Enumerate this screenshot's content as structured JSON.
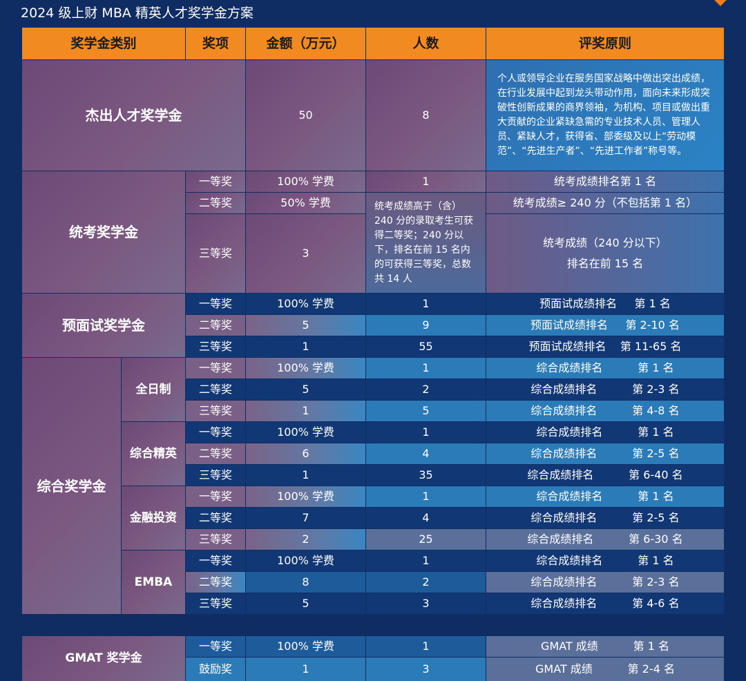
{
  "title": "2024 级上财 MBA 精英人才奖学金方案",
  "headers": [
    "奖学金类别",
    "奖项",
    "金额（万元）",
    "人数",
    "评奖原则"
  ],
  "outstanding": {
    "category": "杰出人才奖学金",
    "amount": "50",
    "count": "8",
    "criteria": "个人或领导企业在服务国家战略中做出突出成绩，在行业发展中起到龙头带动作用，面向未来形成突破性创新成果的商界领袖，为机构、项目或做出重大贡献的企业紧缺急需的专业技术人员、管理人员、紧缺人才，获得省、部委级及以上“劳动模范”、“先进生产者”、“先进工作者”称号等。"
  },
  "unified": {
    "category": "统考奖学金",
    "rows": [
      {
        "award": "一等奖",
        "amount": "100% 学费",
        "count": "1",
        "criteria": "统考成绩排名第 1 名"
      },
      {
        "award": "二等奖",
        "amount": "50% 学费",
        "criteria": "统考成绩≥ 240 分（不包括第 1 名）"
      },
      {
        "award": "三等奖",
        "amount": "3",
        "criteria": "统考成绩（240 分以下）\n排名在前 15 名"
      }
    ],
    "shared_count": "统考成绩高于（含）240 分的录取考生可获得二等奖；240 分以下，排名在前 15 名内的可获得三等奖，总数共 14 人"
  },
  "interview": {
    "category": "预面试奖学金",
    "rows": [
      {
        "award": "一等奖",
        "amount": "100% 学费",
        "count": "1",
        "criteria": "预面试成绩排名     第 1 名"
      },
      {
        "award": "二等奖",
        "amount": "5",
        "count": "9",
        "criteria": "预面试成绩排名     第 2-10 名"
      },
      {
        "award": "三等奖",
        "amount": "1",
        "count": "55",
        "criteria": "预面试成绩排名    第 11-65 名"
      }
    ]
  },
  "comprehensive": {
    "category": "综合奖学金",
    "groups": [
      {
        "name": "全日制",
        "rows": [
          {
            "award": "一等奖",
            "amount": "100% 学费",
            "count": "1",
            "criteria": "综合成绩排名          第 1 名"
          },
          {
            "award": "二等奖",
            "amount": "5",
            "count": "2",
            "criteria": "综合成绩排名          第 2-3 名"
          },
          {
            "award": "三等奖",
            "amount": "1",
            "count": "5",
            "criteria": "综合成绩排名          第 4-8 名"
          }
        ]
      },
      {
        "name": "综合精英",
        "rows": [
          {
            "award": "一等奖",
            "amount": "100% 学费",
            "count": "1",
            "criteria": "综合成绩排名          第 1 名"
          },
          {
            "award": "二等奖",
            "amount": "6",
            "count": "4",
            "criteria": "综合成绩排名          第 2-5 名"
          },
          {
            "award": "三等奖",
            "amount": "1",
            "count": "35",
            "criteria": "综合成绩排名          第 6-40 名"
          }
        ]
      },
      {
        "name": "金融投资",
        "rows": [
          {
            "award": "一等奖",
            "amount": "100% 学费",
            "count": "1",
            "criteria": "综合成绩排名          第 1 名"
          },
          {
            "award": "二等奖",
            "amount": "7",
            "count": "4",
            "criteria": "综合成绩排名          第 2-5 名"
          },
          {
            "award": "三等奖",
            "amount": "2",
            "count": "25",
            "criteria": "综合成绩排名          第 6-30 名"
          }
        ]
      },
      {
        "name": "EMBA",
        "rows": [
          {
            "award": "一等奖",
            "amount": "100% 学费",
            "count": "1",
            "criteria": "综合成绩排名          第 1 名"
          },
          {
            "award": "二等奖",
            "amount": "8",
            "count": "2",
            "criteria": "综合成绩排名          第 2-3 名"
          },
          {
            "award": "三等奖",
            "amount": "5",
            "count": "3",
            "criteria": "综合成绩排名          第 4-6 名"
          }
        ]
      }
    ]
  },
  "gmat": {
    "category": "GMAT 奖学金",
    "rows": [
      {
        "award": "一等奖",
        "amount": "100% 学费",
        "count": "1",
        "criteria": "GMAT 成绩          第 1 名"
      },
      {
        "award": "鼓励奖",
        "amount": "1",
        "count": "3",
        "criteria": "GMAT 成绩          第 2-4 名"
      }
    ]
  }
}
